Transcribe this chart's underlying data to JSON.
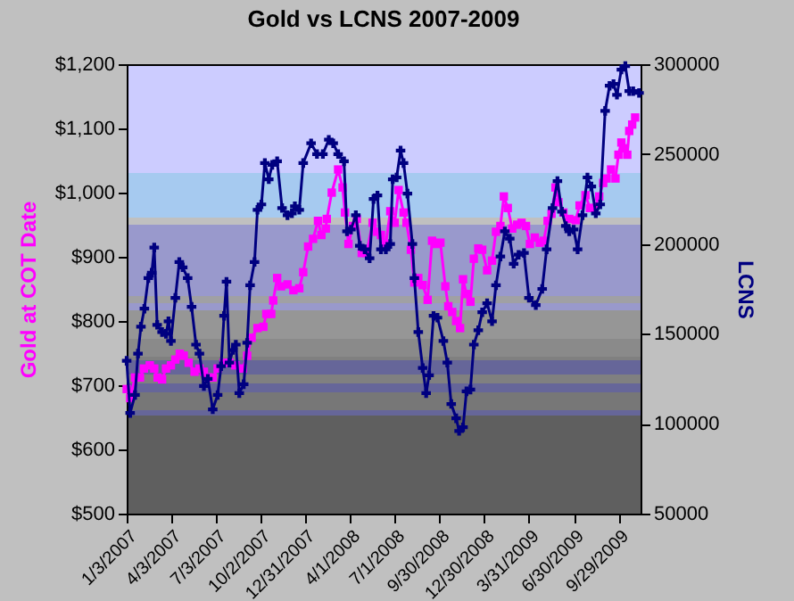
{
  "chart_data": {
    "type": "line",
    "title": "Gold vs LCNS  2007-2009",
    "ylabel": "Gold at COT Date",
    "y2label": "LCNS",
    "xlim": [
      "2007-01-03",
      "2009-11-13"
    ],
    "xticks": [
      {
        "value": "2007-01-03",
        "label": "1/3/2007"
      },
      {
        "value": "2007-04-03",
        "label": "4/3/2007"
      },
      {
        "value": "2007-07-03",
        "label": "7/3/2007"
      },
      {
        "value": "2007-10-02",
        "label": "10/2/2007"
      },
      {
        "value": "2007-12-31",
        "label": "12/31/2007"
      },
      {
        "value": "2008-04-01",
        "label": "4/1/2008"
      },
      {
        "value": "2008-07-01",
        "label": "7/1/2008"
      },
      {
        "value": "2008-09-30",
        "label": "9/30/2008"
      },
      {
        "value": "2008-12-30",
        "label": "12/30/2008"
      },
      {
        "value": "2009-03-31",
        "label": "3/31/2009"
      },
      {
        "value": "2009-06-30",
        "label": "6/30/2009"
      },
      {
        "value": "2009-09-29",
        "label": "9/29/2009"
      }
    ],
    "ylim": [
      500,
      1200
    ],
    "yticks": [
      {
        "value": 500,
        "label": "$500"
      },
      {
        "value": 600,
        "label": "$600"
      },
      {
        "value": 700,
        "label": "$700"
      },
      {
        "value": 800,
        "label": "$800"
      },
      {
        "value": 900,
        "label": "$900"
      },
      {
        "value": 1000,
        "label": "$1,000"
      },
      {
        "value": 1100,
        "label": "$1,100"
      },
      {
        "value": 1200,
        "label": "$1,200"
      }
    ],
    "y2lim": [
      50000,
      300000
    ],
    "y2ticks": [
      50000,
      100000,
      150000,
      200000,
      250000,
      300000
    ],
    "grid": false,
    "line_style": "solid",
    "series": [
      {
        "color": "#ff00ff",
        "marker": "square",
        "x": [
          "2007-01-03",
          "2007-01-10",
          "2007-01-20",
          "2007-01-30",
          "2007-02-07",
          "2007-02-19",
          "2007-02-28",
          "2007-03-07",
          "2007-03-16",
          "2007-03-24",
          "2007-04-03",
          "2007-04-12",
          "2007-04-21",
          "2007-04-29",
          "2007-05-09",
          "2007-05-21",
          "2007-05-31",
          "2007-06-09",
          "2007-06-17",
          "2007-06-27",
          "2007-07-07",
          "2007-07-19",
          "2007-07-31",
          "2007-08-12",
          "2007-08-27",
          "2007-09-05",
          "2007-09-14",
          "2007-09-26",
          "2007-10-08",
          "2007-10-14",
          "2007-10-24",
          "2007-10-28",
          "2007-11-05",
          "2007-11-13",
          "2007-11-26",
          "2007-12-08",
          "2007-12-20",
          "2007-12-28",
          "2008-01-07",
          "2008-01-17",
          "2008-01-27",
          "2008-02-03",
          "2008-02-12",
          "2008-02-14",
          "2008-02-24",
          "2008-03-08",
          "2008-03-17",
          "2008-03-22",
          "2008-03-29",
          "2008-04-07",
          "2008-04-15",
          "2008-04-25",
          "2008-05-05",
          "2008-05-17",
          "2008-05-26",
          "2008-06-03",
          "2008-06-13",
          "2008-06-22",
          "2008-07-01",
          "2008-07-09",
          "2008-07-19",
          "2008-07-25",
          "2008-08-03",
          "2008-08-10",
          "2008-08-18",
          "2008-08-27",
          "2008-09-06",
          "2008-09-15",
          "2008-09-24",
          "2008-10-02",
          "2008-10-12",
          "2008-10-18",
          "2008-10-26",
          "2008-11-03",
          "2008-11-11",
          "2008-11-17",
          "2008-11-24",
          "2008-12-02",
          "2008-12-09",
          "2008-12-18",
          "2008-12-26",
          "2009-01-05",
          "2009-01-15",
          "2009-01-23",
          "2009-02-01",
          "2009-02-08",
          "2009-02-16",
          "2009-02-25",
          "2009-03-07",
          "2009-03-16",
          "2009-03-25",
          "2009-04-02",
          "2009-04-12",
          "2009-04-22",
          "2009-04-30",
          "2009-05-08",
          "2009-05-16",
          "2009-05-24",
          "2009-05-30",
          "2009-06-09",
          "2009-06-21",
          "2009-07-04",
          "2009-07-12",
          "2009-07-24",
          "2009-08-02",
          "2009-08-11",
          "2009-08-21",
          "2009-08-29",
          "2009-09-05",
          "2009-09-14",
          "2009-09-23",
          "2009-09-29",
          "2009-10-05",
          "2009-10-11",
          "2009-10-17",
          "2009-10-21",
          "2009-10-27",
          "2009-11-02"
        ],
        "values": [
          694,
          680,
          712,
          712,
          726,
          731,
          726,
          712,
          709,
          726,
          731,
          740,
          749,
          746,
          735,
          721,
          726,
          721,
          712,
          712,
          726,
          735,
          735,
          731,
          726,
          746,
          774,
          789,
          791,
          811,
          811,
          832,
          867,
          854,
          857,
          848,
          851,
          876,
          916,
          928,
          956,
          934,
          944,
          959,
          1000,
          1036,
          1008,
          969,
          920,
          948,
          959,
          906,
          906,
          953,
          939,
          934,
          920,
          971,
          953,
          1004,
          969,
          953,
          911,
          860,
          867,
          856,
          833,
          925,
          920,
          922,
          854,
          823,
          814,
          800,
          789,
          865,
          842,
          830,
          897,
          913,
          911,
          879,
          894,
          939,
          948,
          994,
          976,
          944,
          950,
          953,
          948,
          920,
          930,
          922,
          925,
          956,
          967,
          1008,
          985,
          969,
          959,
          957,
          980,
          996,
          976,
          976,
          994,
          1015,
          1022,
          1036,
          1022,
          1059,
          1078,
          1069,
          1059,
          1096,
          1106,
          1117
        ]
      },
      {
        "color": "#000080",
        "marker": "cross",
        "axis": "y2",
        "x": [
          "2007-01-03",
          "2007-01-10",
          "2007-01-20",
          "2007-01-26",
          "2007-02-01",
          "2007-02-08",
          "2007-02-16",
          "2007-02-23",
          "2007-02-28",
          "2007-03-06",
          "2007-03-16",
          "2007-03-24",
          "2007-03-29",
          "2007-04-03",
          "2007-04-12",
          "2007-04-20",
          "2007-04-27",
          "2007-05-07",
          "2007-05-15",
          "2007-05-24",
          "2007-05-31",
          "2007-06-09",
          "2007-06-17",
          "2007-06-27",
          "2007-07-07",
          "2007-07-14",
          "2007-07-20",
          "2007-07-25",
          "2007-07-31",
          "2007-08-07",
          "2007-08-13",
          "2007-08-20",
          "2007-08-29",
          "2007-09-05",
          "2007-09-11",
          "2007-09-20",
          "2007-09-26",
          "2007-10-04",
          "2007-10-11",
          "2007-10-19",
          "2007-10-26",
          "2007-11-05",
          "2007-11-15",
          "2007-11-26",
          "2007-12-05",
          "2007-12-11",
          "2007-12-20",
          "2007-12-28",
          "2008-01-13",
          "2008-01-25",
          "2008-02-06",
          "2008-02-18",
          "2008-02-27",
          "2008-03-08",
          "2008-03-20",
          "2008-03-26",
          "2008-04-03",
          "2008-04-13",
          "2008-04-21",
          "2008-05-01",
          "2008-05-11",
          "2008-05-19",
          "2008-05-27",
          "2008-06-03",
          "2008-06-13",
          "2008-06-22",
          "2008-06-27",
          "2008-07-05",
          "2008-07-13",
          "2008-07-19",
          "2008-07-27",
          "2008-08-06",
          "2008-08-10",
          "2008-08-18",
          "2008-08-27",
          "2008-09-03",
          "2008-09-09",
          "2008-09-18",
          "2008-09-26",
          "2008-10-08",
          "2008-10-16",
          "2008-10-24",
          "2008-11-03",
          "2008-11-09",
          "2008-11-17",
          "2008-11-24",
          "2008-12-02",
          "2008-12-09",
          "2008-12-18",
          "2008-12-26",
          "2009-01-05",
          "2009-01-15",
          "2009-01-23",
          "2009-02-01",
          "2009-02-10",
          "2009-02-20",
          "2009-02-28",
          "2009-03-10",
          "2009-03-21",
          "2009-03-31",
          "2009-04-14",
          "2009-04-27",
          "2009-05-06",
          "2009-05-18",
          "2009-05-28",
          "2009-06-06",
          "2009-06-14",
          "2009-06-21",
          "2009-06-30",
          "2009-07-08",
          "2009-07-18",
          "2009-07-28",
          "2009-08-05",
          "2009-08-14",
          "2009-08-23",
          "2009-09-02",
          "2009-09-11",
          "2009-09-19",
          "2009-09-26",
          "2009-10-05",
          "2009-10-13",
          "2009-10-21",
          "2009-10-29",
          "2009-11-10"
        ],
        "values": [
          135000,
          106000,
          116000,
          139000,
          154000,
          164000,
          181000,
          184000,
          198000,
          155000,
          151000,
          150000,
          157000,
          146000,
          170000,
          190000,
          187000,
          181000,
          165000,
          144000,
          139000,
          121000,
          125000,
          108000,
          116000,
          132000,
          160000,
          179000,
          134000,
          141000,
          144000,
          117000,
          122000,
          145000,
          177000,
          190000,
          219000,
          222000,
          245000,
          236000,
          244000,
          246000,
          220000,
          216000,
          217000,
          221000,
          219000,
          245000,
          256000,
          250000,
          250000,
          258000,
          256000,
          250000,
          246000,
          207000,
          208000,
          216000,
          199000,
          197000,
          192000,
          225000,
          227000,
          197000,
          197000,
          200000,
          236000,
          237000,
          252000,
          245000,
          228000,
          200000,
          181000,
          151000,
          131000,
          117000,
          127000,
          160000,
          159000,
          146000,
          134000,
          111000,
          103000,
          96000,
          98000,
          118000,
          119000,
          144000,
          152000,
          162000,
          167000,
          157000,
          177000,
          193000,
          207000,
          203000,
          189000,
          194000,
          195000,
          170000,
          166000,
          175000,
          197000,
          220000,
          235000,
          218000,
          210000,
          207000,
          208000,
          197000,
          216000,
          237000,
          232000,
          217000,
          222000,
          274000,
          288000,
          289000,
          283000,
          297000,
          299000,
          285000,
          285000,
          284000
        ]
      }
    ]
  }
}
